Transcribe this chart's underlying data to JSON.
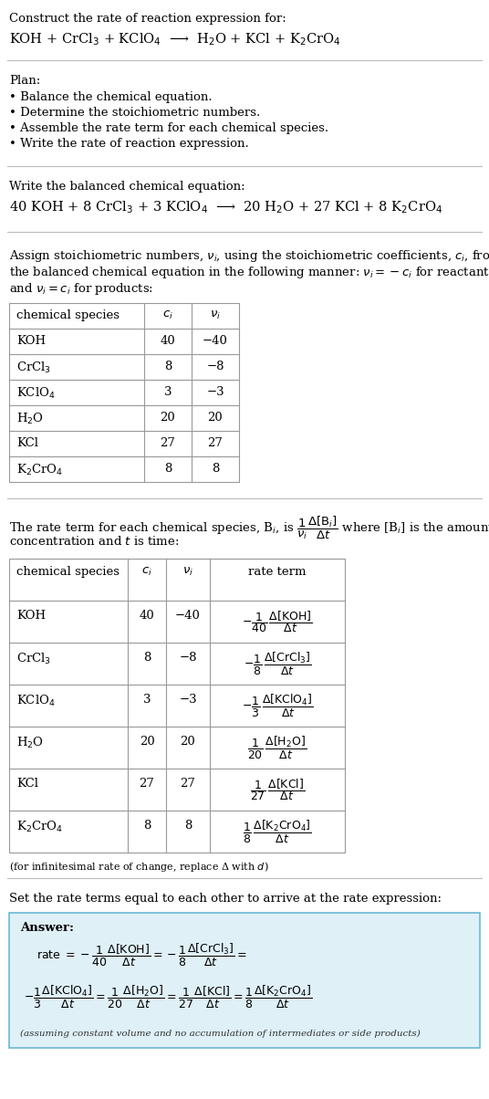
{
  "bg_color": "#ffffff",
  "text_color": "#000000",
  "title_line1": "Construct the rate of reaction expression for:",
  "reaction_unbalanced": "KOH + CrCl$_3$ + KClO$_4$  ⟶  H$_2$O + KCl + K$_2$CrO$_4$",
  "plan_header": "Plan:",
  "plan_items": [
    "• Balance the chemical equation.",
    "• Determine the stoichiometric numbers.",
    "• Assemble the rate term for each chemical species.",
    "• Write the rate of reaction expression."
  ],
  "balanced_header": "Write the balanced chemical equation:",
  "reaction_balanced": "40 KOH + 8 CrCl$_3$ + 3 KClO$_4$  ⟶  20 H$_2$O + 27 KCl + 8 K$_2$CrO$_4$",
  "stoich_header_lines": [
    "Assign stoichiometric numbers, $\\nu_i$, using the stoichiometric coefficients, $c_i$, from",
    "the balanced chemical equation in the following manner: $\\nu_i = -c_i$ for reactants",
    "and $\\nu_i = c_i$ for products:"
  ],
  "table1_headers": [
    "chemical species",
    "$c_i$",
    "$\\nu_i$"
  ],
  "table1_rows": [
    [
      "KOH",
      "40",
      "−40"
    ],
    [
      "CrCl$_3$",
      "8",
      "−8"
    ],
    [
      "KClO$_4$",
      "3",
      "−3"
    ],
    [
      "H$_2$O",
      "20",
      "20"
    ],
    [
      "KCl",
      "27",
      "27"
    ],
    [
      "K$_2$CrO$_4$",
      "8",
      "8"
    ]
  ],
  "rate_term_header_lines": [
    "The rate term for each chemical species, B$_i$, is $\\dfrac{1}{\\nu_i}\\dfrac{\\Delta[\\mathrm{B}_i]}{\\Delta t}$ where [B$_i$] is the amount",
    "concentration and $t$ is time:"
  ],
  "table2_headers": [
    "chemical species",
    "$c_i$",
    "$\\nu_i$",
    "rate term"
  ],
  "table2_rows": [
    [
      "KOH",
      "40",
      "−40",
      "$-\\dfrac{1}{40}\\,\\dfrac{\\Delta[\\mathrm{KOH}]}{\\Delta t}$"
    ],
    [
      "CrCl$_3$",
      "8",
      "−8",
      "$-\\dfrac{1}{8}\\,\\dfrac{\\Delta[\\mathrm{CrCl_3}]}{\\Delta t}$"
    ],
    [
      "KClO$_4$",
      "3",
      "−3",
      "$-\\dfrac{1}{3}\\,\\dfrac{\\Delta[\\mathrm{KClO_4}]}{\\Delta t}$"
    ],
    [
      "H$_2$O",
      "20",
      "20",
      "$\\dfrac{1}{20}\\,\\dfrac{\\Delta[\\mathrm{H_2O}]}{\\Delta t}$"
    ],
    [
      "KCl",
      "27",
      "27",
      "$\\dfrac{1}{27}\\,\\dfrac{\\Delta[\\mathrm{KCl}]}{\\Delta t}$"
    ],
    [
      "K$_2$CrO$_4$",
      "8",
      "8",
      "$\\dfrac{1}{8}\\,\\dfrac{\\Delta[\\mathrm{K_2CrO_4}]}{\\Delta t}$"
    ]
  ],
  "infinitesimal_note": "(for infinitesimal rate of change, replace Δ with $d$)",
  "set_equal_header": "Set the rate terms equal to each other to arrive at the rate expression:",
  "answer_box_bg": "#dff0f7",
  "answer_box_border": "#6bb8d4",
  "answer_label": "Answer:",
  "answer_line1": "rate $= -\\dfrac{1}{40}\\dfrac{\\Delta[\\mathrm{KOH}]}{\\Delta t} = -\\dfrac{1}{8}\\dfrac{\\Delta[\\mathrm{CrCl_3}]}{\\Delta t} =$",
  "answer_line2": "$-\\dfrac{1}{3}\\dfrac{\\Delta[\\mathrm{KClO_4}]}{\\Delta t} = \\dfrac{1}{20}\\dfrac{\\Delta[\\mathrm{H_2O}]}{\\Delta t} = \\dfrac{1}{27}\\dfrac{\\Delta[\\mathrm{KCl}]}{\\Delta t} = \\dfrac{1}{8}\\dfrac{\\Delta[\\mathrm{K_2CrO_4}]}{\\Delta t}$",
  "answer_footnote": "(assuming constant volume and no accumulation of intermediates or side products)"
}
